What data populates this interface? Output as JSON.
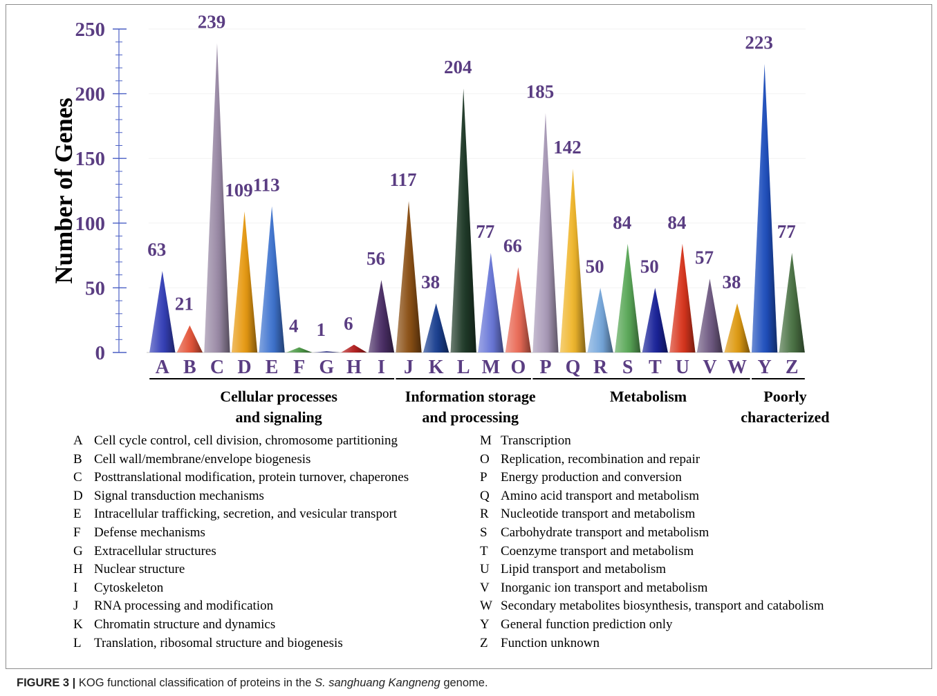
{
  "chart_data": {
    "type": "bar",
    "ylabel": "Number of Genes",
    "ylim": [
      0,
      250
    ],
    "yticks": [
      0,
      50,
      100,
      150,
      200,
      250
    ],
    "categories": [
      "A",
      "B",
      "C",
      "D",
      "E",
      "F",
      "G",
      "H",
      "I",
      "J",
      "K",
      "L",
      "M",
      "O",
      "P",
      "Q",
      "R",
      "S",
      "T",
      "U",
      "V",
      "W",
      "Y",
      "Z"
    ],
    "values": [
      63,
      21,
      239,
      109,
      113,
      4,
      1,
      6,
      56,
      117,
      38,
      204,
      77,
      66,
      185,
      142,
      50,
      84,
      50,
      84,
      57,
      38,
      223,
      77
    ],
    "bar_colors": [
      "#3540b8",
      "#e4553a",
      "#9a8aa6",
      "#e79a12",
      "#3f74cf",
      "#4e9a48",
      "#3a3f8f",
      "#b32020",
      "#4b2e66",
      "#8a4f14",
      "#1a3f90",
      "#1f3a28",
      "#6a78d8",
      "#e96a56",
      "#a99ab8",
      "#f0b62c",
      "#77a8dc",
      "#5aa858",
      "#1a239a",
      "#d8351d",
      "#6f5a82",
      "#de9a12",
      "#1f4fbd",
      "#4a7244"
    ],
    "groups": [
      {
        "title_lines": [
          "Cellular processes",
          "and signaling"
        ],
        "from": "A",
        "to": "I"
      },
      {
        "title_lines": [
          "Information storage",
          "and processing"
        ],
        "from": "J",
        "to": "O"
      },
      {
        "title_lines": [
          "Metabolism"
        ],
        "from": "P",
        "to": "W"
      },
      {
        "title_lines": [
          "Poorly",
          "characterized"
        ],
        "from": "Y",
        "to": "Z"
      }
    ],
    "label_color": "#5a3d82",
    "grid": false
  },
  "legend": {
    "left": [
      {
        "code": "A",
        "text": "Cell cycle control, cell division, chromosome partitioning"
      },
      {
        "code": "B",
        "text": "Cell wall/membrane/envelope biogenesis"
      },
      {
        "code": "C",
        "text": "Posttranslational modification, protein turnover, chaperones"
      },
      {
        "code": "D",
        "text": "Signal transduction mechanisms"
      },
      {
        "code": "E",
        "text": "Intracellular trafficking, secretion, and vesicular transport"
      },
      {
        "code": "F",
        "text": "Defense mechanisms"
      },
      {
        "code": "G",
        "text": "Extracellular structures"
      },
      {
        "code": "H",
        "text": "Nuclear structure"
      },
      {
        "code": "I",
        "text": "Cytoskeleton"
      },
      {
        "code": "J",
        "text": "RNA processing and modification"
      },
      {
        "code": "K",
        "text": "Chromatin structure and dynamics"
      },
      {
        "code": "L",
        "text": "Translation, ribosomal structure and biogenesis"
      }
    ],
    "right": [
      {
        "code": "M",
        "text": "Transcription"
      },
      {
        "code": "O",
        "text": "Replication, recombination and repair"
      },
      {
        "code": "P",
        "text": "Energy production and conversion"
      },
      {
        "code": "Q",
        "text": "Amino acid transport and metabolism"
      },
      {
        "code": "R",
        "text": "Nucleotide transport and metabolism"
      },
      {
        "code": "S",
        "text": "Carbohydrate transport and metabolism"
      },
      {
        "code": "T",
        "text": "Coenzyme transport and metabolism"
      },
      {
        "code": "U",
        "text": "Lipid transport and metabolism"
      },
      {
        "code": "V",
        "text": "Inorganic ion transport and metabolism"
      },
      {
        "code": "W",
        "text": "Secondary metabolites biosynthesis, transport and catabolism"
      },
      {
        "code": "Y",
        "text": "General function prediction only"
      },
      {
        "code": "Z",
        "text": "Function unknown"
      }
    ]
  },
  "caption": {
    "label": "FIGURE 3 |",
    "before_species": " KOG functional classification of proteins in the ",
    "species": "S. sanghuang Kangneng",
    "after_species": " genome."
  }
}
